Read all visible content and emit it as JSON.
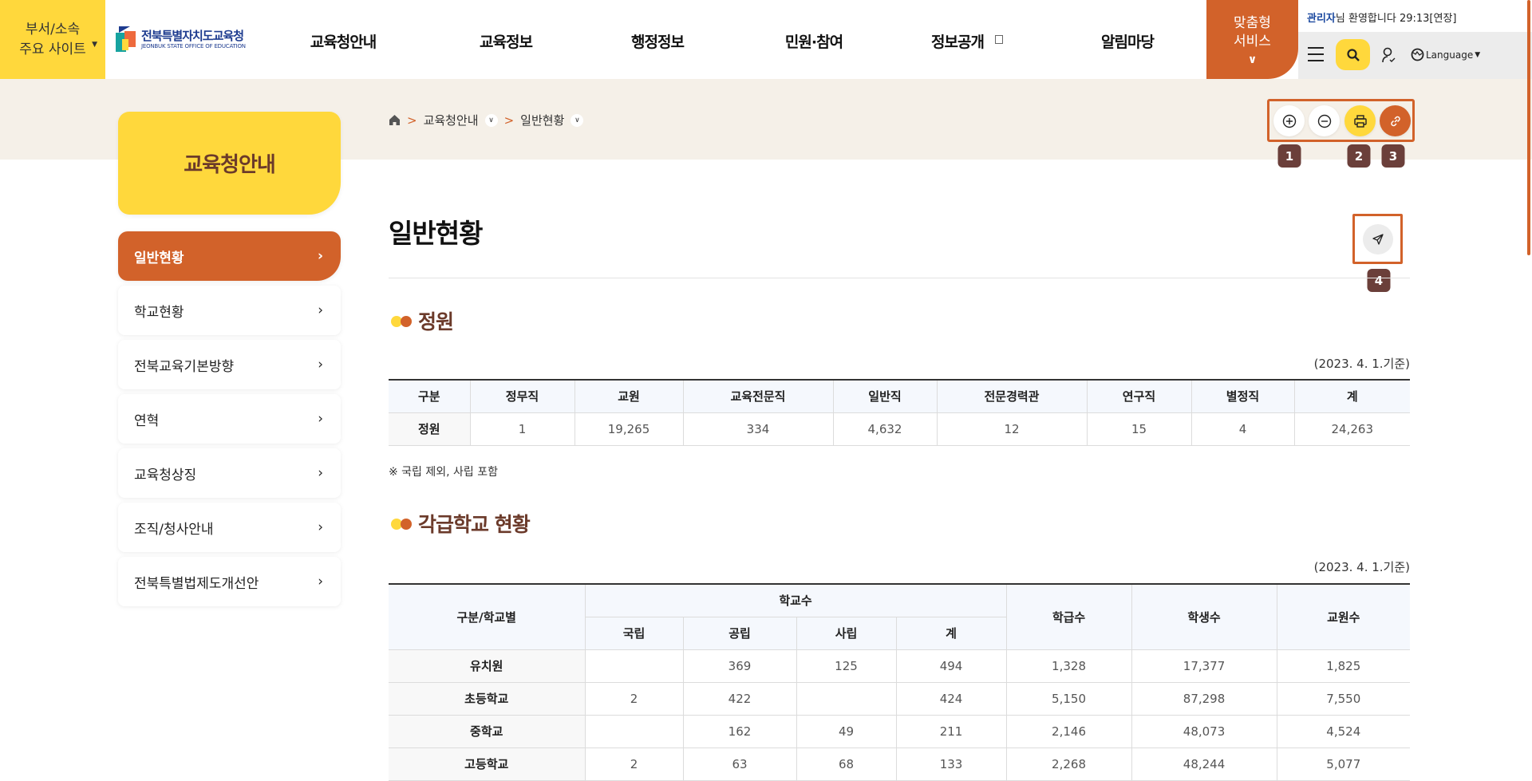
{
  "header": {
    "sites_button": [
      "부서/소속",
      "주요 사이트"
    ],
    "logo": {
      "name": "전북특별자치도교육청",
      "english": "JEONBUK STATE OFFICE OF EDUCATION"
    },
    "nav": [
      "교육청안내",
      "교육정보",
      "행정정보",
      "민원·참여",
      "정보공개",
      "알림마당"
    ],
    "custom_service": [
      "맞춤형",
      "서비스"
    ],
    "welcome": {
      "user": "관리자",
      "text": "님 환영합니다",
      "timer": "29:13",
      "extend": "[연장]"
    },
    "language": "Language",
    "colors": {
      "accent": "#d2622a",
      "yellow": "#ffd83c",
      "brown": "#6b3a2a"
    }
  },
  "sidebar": {
    "title": "교육청안내",
    "items": [
      {
        "label": "일반현황",
        "active": true
      },
      {
        "label": "학교현황"
      },
      {
        "label": "전북교육기본방향"
      },
      {
        "label": "연혁"
      },
      {
        "label": "교육청상징"
      },
      {
        "label": "조직/청사안내"
      },
      {
        "label": "전북특별법제도개선안"
      }
    ]
  },
  "breadcrumb": [
    "교육청안내",
    "일반현황"
  ],
  "tools": {
    "badges": [
      "1",
      "2",
      "3",
      "4"
    ],
    "icons": [
      "zoom-in-icon",
      "zoom-out-icon",
      "print-icon",
      "link-icon",
      "share-icon"
    ]
  },
  "page_title": "일반현황",
  "section1": {
    "title": "정원",
    "date": "(2023. 4. 1.기준)",
    "headers": [
      "구분",
      "정무직",
      "교원",
      "교육전문직",
      "일반직",
      "전문경력관",
      "연구직",
      "별정직",
      "계"
    ],
    "rows": [
      [
        "정원",
        "1",
        "19,265",
        "334",
        "4,632",
        "12",
        "15",
        "4",
        "24,263"
      ]
    ],
    "note": "※ 국립 제외, 사립 포함"
  },
  "section2": {
    "title": "각급학교 현황",
    "date": "(2023. 4. 1.기준)",
    "header_top": {
      "category": "구분/학교별",
      "schools": "학교수",
      "classes": "학급수",
      "students": "학생수",
      "teachers": "교원수"
    },
    "header_sub": [
      "국립",
      "공립",
      "사립",
      "계"
    ],
    "rows": [
      [
        "유치원",
        "",
        "369",
        "125",
        "494",
        "1,328",
        "17,377",
        "1,825"
      ],
      [
        "초등학교",
        "2",
        "422",
        "",
        "424",
        "5,150",
        "87,298",
        "7,550"
      ],
      [
        "중학교",
        "",
        "162",
        "49",
        "211",
        "2,146",
        "48,073",
        "4,524"
      ],
      [
        "고등학교",
        "2",
        "63",
        "68",
        "133",
        "2,268",
        "48,244",
        "5,077"
      ]
    ]
  }
}
